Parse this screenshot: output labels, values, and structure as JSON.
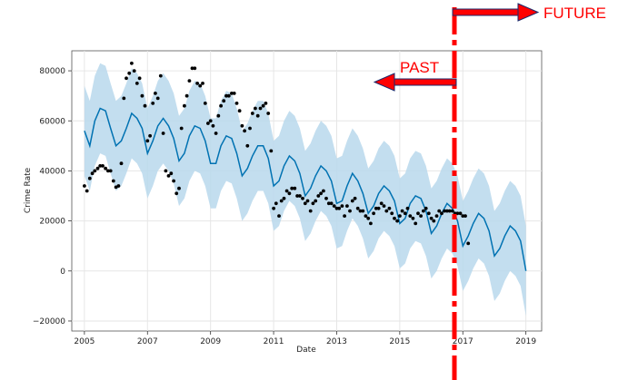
{
  "chart_data": {
    "type": "line",
    "xlabel": "Date",
    "ylabel": "Crime Rate",
    "xlim": [
      2004.6,
      2019.5
    ],
    "ylim": [
      -24000,
      88000
    ],
    "x_ticks": [
      2005,
      2007,
      2009,
      2011,
      2013,
      2015,
      2017,
      2019
    ],
    "y_ticks": [
      -20000,
      0,
      20000,
      40000,
      60000,
      80000
    ],
    "y_tick_labels": [
      "−20000",
      "0",
      "20000",
      "40000",
      "60000",
      "80000"
    ],
    "grid": true,
    "colors": {
      "forecast": "#0072b2",
      "interval": "#b9d8ec",
      "observed": "#000000",
      "annotation": "#ff0000"
    },
    "series": [
      {
        "role": "observed points",
        "x": [
          2005.0,
          2005.08,
          2005.17,
          2005.25,
          2005.33,
          2005.42,
          2005.5,
          2005.58,
          2005.67,
          2005.75,
          2005.83,
          2005.92,
          2006.0,
          2006.08,
          2006.17,
          2006.25,
          2006.33,
          2006.42,
          2006.5,
          2006.58,
          2006.67,
          2006.75,
          2006.83,
          2006.92,
          2007.0,
          2007.08,
          2007.17,
          2007.25,
          2007.33,
          2007.42,
          2007.5,
          2007.58,
          2007.67,
          2007.75,
          2007.83,
          2007.92,
          2008.0,
          2008.08,
          2008.17,
          2008.25,
          2008.33,
          2008.42,
          2008.5,
          2008.58,
          2008.67,
          2008.75,
          2008.83,
          2008.92,
          2009.0,
          2009.08,
          2009.17,
          2009.25,
          2009.33,
          2009.42,
          2009.5,
          2009.58,
          2009.67,
          2009.75,
          2009.83,
          2009.92,
          2010.0,
          2010.08,
          2010.17,
          2010.25,
          2010.33,
          2010.42,
          2010.5,
          2010.58,
          2010.67,
          2010.75,
          2010.83,
          2010.92,
          2011.0,
          2011.08,
          2011.17,
          2011.25,
          2011.33,
          2011.42,
          2011.5,
          2011.58,
          2011.67,
          2011.75,
          2011.83,
          2011.92,
          2012.0,
          2012.08,
          2012.17,
          2012.25,
          2012.33,
          2012.42,
          2012.5,
          2012.58,
          2012.67,
          2012.75,
          2012.83,
          2012.92,
          2013.0,
          2013.08,
          2013.17,
          2013.25,
          2013.33,
          2013.42,
          2013.5,
          2013.58,
          2013.67,
          2013.75,
          2013.83,
          2013.92,
          2014.0,
          2014.08,
          2014.17,
          2014.25,
          2014.33,
          2014.42,
          2014.5,
          2014.58,
          2014.67,
          2014.75,
          2014.83,
          2014.92,
          2015.0,
          2015.08,
          2015.17,
          2015.25,
          2015.33,
          2015.42,
          2015.5,
          2015.58,
          2015.67,
          2015.75,
          2015.83,
          2015.92,
          2016.0,
          2016.08,
          2016.17,
          2016.25,
          2016.33,
          2016.42,
          2016.5,
          2016.58,
          2016.67,
          2016.75,
          2016.83,
          2016.92,
          2017.0,
          2017.08,
          2017.17
        ],
        "y": [
          34000,
          32000,
          37000,
          39000,
          40000,
          41000,
          42000,
          42000,
          41000,
          40000,
          40000,
          36000,
          33500,
          34000,
          43000,
          69000,
          77000,
          79000,
          83000,
          80000,
          75000,
          77000,
          70000,
          66000,
          52000,
          54000,
          67000,
          71000,
          69000,
          78000,
          55000,
          40000,
          38000,
          39000,
          36000,
          31000,
          33000,
          57000,
          66000,
          70000,
          76000,
          81000,
          81000,
          75000,
          74000,
          75000,
          67000,
          59000,
          60000,
          58000,
          55000,
          62000,
          66000,
          68000,
          70000,
          70000,
          71000,
          71000,
          67000,
          64000,
          58000,
          56000,
          50000,
          57000,
          63000,
          65000,
          62000,
          65000,
          66000,
          67000,
          63000,
          48000,
          25000,
          27000,
          22000,
          28000,
          29000,
          32000,
          31000,
          33000,
          33000,
          30000,
          30000,
          29000,
          27000,
          28000,
          24000,
          27000,
          28000,
          30000,
          31000,
          32000,
          29000,
          27000,
          27000,
          26000,
          25000,
          25000,
          26000,
          22000,
          26000,
          24000,
          28000,
          29000,
          25000,
          24000,
          24000,
          22000,
          21000,
          19000,
          23000,
          25000,
          25000,
          27000,
          26000,
          24000,
          25000,
          23000,
          21000,
          20000,
          22000,
          24000,
          23000,
          25000,
          22000,
          21000,
          19000,
          23000,
          22000,
          24000,
          25000,
          23000,
          21000,
          20000,
          22000,
          24000,
          23000,
          24000,
          24000,
          24000,
          24000,
          23000,
          23000,
          23000,
          22000,
          22000,
          11000
        ]
      },
      {
        "role": "forecast",
        "x": [
          2005.0,
          2005.17,
          2005.33,
          2005.5,
          2005.67,
          2005.83,
          2006.0,
          2006.17,
          2006.33,
          2006.5,
          2006.67,
          2006.83,
          2007.0,
          2007.17,
          2007.33,
          2007.5,
          2007.67,
          2007.83,
          2008.0,
          2008.17,
          2008.33,
          2008.5,
          2008.67,
          2008.83,
          2009.0,
          2009.17,
          2009.33,
          2009.5,
          2009.67,
          2009.83,
          2010.0,
          2010.17,
          2010.33,
          2010.5,
          2010.67,
          2010.83,
          2011.0,
          2011.17,
          2011.33,
          2011.5,
          2011.67,
          2011.83,
          2012.0,
          2012.17,
          2012.33,
          2012.5,
          2012.67,
          2012.83,
          2013.0,
          2013.17,
          2013.33,
          2013.5,
          2013.67,
          2013.83,
          2014.0,
          2014.17,
          2014.33,
          2014.5,
          2014.67,
          2014.83,
          2015.0,
          2015.17,
          2015.33,
          2015.5,
          2015.67,
          2015.83,
          2016.0,
          2016.17,
          2016.33,
          2016.5,
          2016.67,
          2016.83,
          2017.0,
          2017.17,
          2017.33,
          2017.5,
          2017.67,
          2017.83,
          2018.0,
          2018.17,
          2018.33,
          2018.5,
          2018.67,
          2018.83,
          2019.0
        ],
        "y": [
          56000,
          50000,
          60000,
          65000,
          64000,
          57000,
          50000,
          52000,
          57000,
          63000,
          61000,
          57000,
          47000,
          52000,
          58000,
          61000,
          58000,
          53000,
          44000,
          47000,
          54000,
          58000,
          57000,
          52000,
          43000,
          43000,
          50000,
          54000,
          53000,
          47000,
          38000,
          41000,
          46000,
          50000,
          50000,
          45000,
          34000,
          36000,
          42000,
          46000,
          44000,
          39000,
          30000,
          33000,
          38000,
          42000,
          40000,
          36000,
          27000,
          28000,
          34000,
          39000,
          36000,
          31000,
          23000,
          26000,
          31000,
          34000,
          32000,
          28000,
          19000,
          21000,
          27000,
          30000,
          29000,
          24000,
          15000,
          18000,
          23000,
          27000,
          25000,
          20000,
          10000,
          14000,
          19000,
          23000,
          21000,
          16000,
          6000,
          9000,
          14000,
          18000,
          16000,
          12000,
          0
        ]
      }
    ],
    "interval_width": 18000
  },
  "annotations": {
    "past_label": "PAST",
    "future_label": "FUTURE",
    "split_x": 2017.0
  }
}
